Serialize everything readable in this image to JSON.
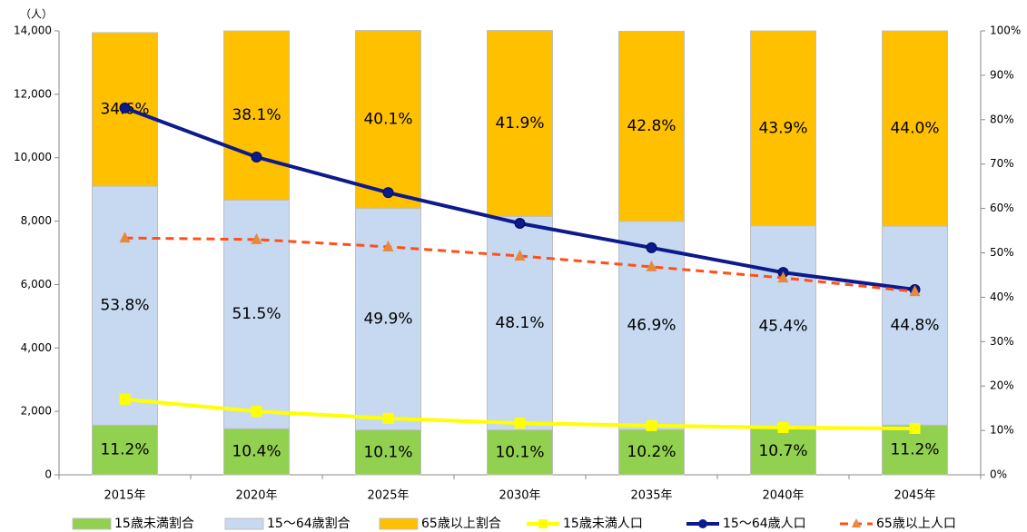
{
  "chart_data": {
    "type": "combo",
    "y_unit_label": "（人）",
    "categories": [
      "2015年",
      "2020年",
      "2025年",
      "2030年",
      "2035年",
      "2040年",
      "2045年"
    ],
    "ylim": [
      0,
      14000
    ],
    "yticks": [
      {
        "value": 0,
        "label": "0"
      },
      {
        "value": 2000,
        "label": "2,000"
      },
      {
        "value": 4000,
        "label": "4,000"
      },
      {
        "value": 6000,
        "label": "6,000"
      },
      {
        "value": 8000,
        "label": "8,000"
      },
      {
        "value": 10000,
        "label": "10,000"
      },
      {
        "value": 12000,
        "label": "12,000"
      },
      {
        "value": 14000,
        "label": "14,000"
      }
    ],
    "y2lim": [
      0,
      100
    ],
    "y2ticks": [
      {
        "value": 0,
        "label": "0%"
      },
      {
        "value": 10,
        "label": "10%"
      },
      {
        "value": 20,
        "label": "20%"
      },
      {
        "value": 30,
        "label": "30%"
      },
      {
        "value": 40,
        "label": "40%"
      },
      {
        "value": 50,
        "label": "50%"
      },
      {
        "value": 60,
        "label": "60%"
      },
      {
        "value": 70,
        "label": "70%"
      },
      {
        "value": 80,
        "label": "80%"
      },
      {
        "value": 90,
        "label": "90%"
      },
      {
        "value": 100,
        "label": "100%"
      }
    ],
    "grid": false,
    "series": [
      {
        "name": "15歳未満割合",
        "type": "bar",
        "axis": "y2",
        "color": "#92d050",
        "values": [
          11.2,
          10.4,
          10.1,
          10.1,
          10.2,
          10.7,
          11.2
        ],
        "value_labels": [
          "11.2%",
          "10.4%",
          "10.1%",
          "10.1%",
          "10.2%",
          "10.7%",
          "11.2%"
        ]
      },
      {
        "name": "15〜64歳割合",
        "type": "bar",
        "axis": "y2",
        "color": "#c6d9f1",
        "values": [
          53.8,
          51.5,
          49.9,
          48.1,
          46.9,
          45.4,
          44.8
        ],
        "value_labels": [
          "53.8%",
          "51.5%",
          "49.9%",
          "48.1%",
          "46.9%",
          "45.4%",
          "44.8%"
        ]
      },
      {
        "name": "65歳以上割合",
        "type": "bar",
        "axis": "y2",
        "color": "#ffc000",
        "values": [
          34.6,
          38.1,
          40.1,
          41.9,
          42.8,
          43.9,
          44.0
        ],
        "value_labels": [
          "34.6%",
          "38.1%",
          "40.1%",
          "41.9%",
          "42.8%",
          "43.9%",
          "44.0%"
        ]
      },
      {
        "name": "15歳未満人口",
        "type": "line",
        "color": "#ffff00",
        "marker": "square",
        "values": [
          2380,
          2000,
          1780,
          1630,
          1550,
          1490,
          1460
        ]
      },
      {
        "name": "15〜64歳人口",
        "type": "line",
        "color": "#0d1a8c",
        "marker": "circle",
        "values": [
          11570,
          10020,
          8900,
          7930,
          7160,
          6380,
          5840
        ]
      },
      {
        "name": "65歳以上人口",
        "type": "line",
        "color": "#ff4f1a",
        "marker_color": "#e8893a",
        "marker": "triangle",
        "dashed": true,
        "values": [
          7470,
          7420,
          7190,
          6900,
          6560,
          6210,
          5780
        ]
      }
    ]
  }
}
